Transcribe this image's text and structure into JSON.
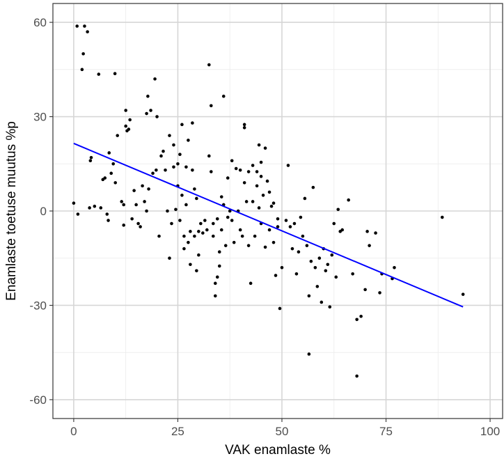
{
  "chart_data": {
    "type": "scatter",
    "title": "",
    "xlabel": "VAK enamlaste %",
    "ylabel": "Enamlaste toetuse muutus %p",
    "xlim": [
      -5,
      103
    ],
    "ylim": [
      -66,
      66
    ],
    "x_ticks": [
      0,
      25,
      50,
      75,
      100
    ],
    "x_tick_labels": [
      "0",
      "25",
      "50",
      "75",
      "100"
    ],
    "y_ticks": [
      60,
      30,
      0,
      -30,
      -60
    ],
    "y_tick_labels": [
      "60",
      "30",
      "0",
      "-30",
      "-60"
    ],
    "grid": true,
    "point_color": "#000000",
    "line_color": "#0000ff",
    "trend_line": {
      "x": [
        0,
        93.5
      ],
      "y": [
        21.5,
        -30.5
      ]
    },
    "points": [
      [
        0.8,
        58.8
      ],
      [
        2.6,
        58.8
      ],
      [
        3.3,
        57.0
      ],
      [
        2.3,
        50.0
      ],
      [
        2.0,
        45.0
      ],
      [
        6.0,
        43.5
      ],
      [
        9.9,
        43.7
      ],
      [
        0,
        2.5
      ],
      [
        1.0,
        -1.0
      ],
      [
        4.0,
        16.0
      ],
      [
        4.2,
        17.0
      ],
      [
        3.8,
        1.0
      ],
      [
        5.0,
        1.5
      ],
      [
        6.5,
        1.0
      ],
      [
        7.0,
        10.0
      ],
      [
        7.5,
        10.5
      ],
      [
        8.0,
        -1.0
      ],
      [
        8.3,
        -3.0
      ],
      [
        8.5,
        18.5
      ],
      [
        9.0,
        12.0
      ],
      [
        9.5,
        15.0
      ],
      [
        10.0,
        9.0
      ],
      [
        10.5,
        24.0
      ],
      [
        11.5,
        3.0
      ],
      [
        12.0,
        2.0
      ],
      [
        12.0,
        -4.5
      ],
      [
        12.5,
        27.0
      ],
      [
        12.5,
        32.0
      ],
      [
        12.8,
        25.5
      ],
      [
        13.2,
        26.0
      ],
      [
        13.5,
        29.0
      ],
      [
        14.0,
        -2.5
      ],
      [
        14.5,
        6.5
      ],
      [
        15.0,
        2.0
      ],
      [
        15.5,
        -4.0
      ],
      [
        16.0,
        -5.0
      ],
      [
        16.5,
        8.0
      ],
      [
        17.0,
        3.0
      ],
      [
        17.5,
        31.0
      ],
      [
        17.5,
        0
      ],
      [
        17.8,
        36.5
      ],
      [
        18.0,
        7.0
      ],
      [
        18.5,
        32.0
      ],
      [
        19.0,
        12.0
      ],
      [
        19.5,
        42.0
      ],
      [
        19.8,
        13.0
      ],
      [
        20.0,
        30.0
      ],
      [
        20.5,
        -8.0
      ],
      [
        21.0,
        17.5
      ],
      [
        21.5,
        19.0
      ],
      [
        22.0,
        13.0
      ],
      [
        22.5,
        0
      ],
      [
        23.0,
        24.0
      ],
      [
        23.5,
        -4.0
      ],
      [
        23.0,
        -15.0
      ],
      [
        24.0,
        14.0
      ],
      [
        24.0,
        21.0
      ],
      [
        24.5,
        0.5
      ],
      [
        25.0,
        8.0
      ],
      [
        25.0,
        15.0
      ],
      [
        25.5,
        18.0
      ],
      [
        25.5,
        -3.0
      ],
      [
        26.0,
        27.5
      ],
      [
        26.0,
        5.0
      ],
      [
        26.5,
        -8.0
      ],
      [
        26.5,
        -12.0
      ],
      [
        27.0,
        14.0
      ],
      [
        27.0,
        2.0
      ],
      [
        27.5,
        -10.0
      ],
      [
        27.5,
        22.5
      ],
      [
        28.0,
        -17.0
      ],
      [
        28.0,
        -6.5
      ],
      [
        28.5,
        28.0
      ],
      [
        28.5,
        13.0
      ],
      [
        29.0,
        7.0
      ],
      [
        29.0,
        -8.0
      ],
      [
        29.5,
        -19.0
      ],
      [
        29.5,
        4.0
      ],
      [
        30.0,
        -14.0
      ],
      [
        30.0,
        -6.5
      ],
      [
        30.5,
        -4.0
      ],
      [
        31.0,
        -7.0
      ],
      [
        31.5,
        -3.0
      ],
      [
        32.0,
        -6.0
      ],
      [
        32.5,
        46.5
      ],
      [
        32.5,
        17.5
      ],
      [
        33.0,
        33.5
      ],
      [
        33.0,
        12.5
      ],
      [
        33.5,
        -8.0
      ],
      [
        33.5,
        -4.0
      ],
      [
        34.0,
        -23.0
      ],
      [
        34.0,
        -27.0
      ],
      [
        34.5,
        -21.0
      ],
      [
        34.5,
        -2.5
      ],
      [
        35.0,
        -17.5
      ],
      [
        35.0,
        -13.0
      ],
      [
        35.5,
        4.5
      ],
      [
        35.5,
        -6.0
      ],
      [
        36.0,
        36.5
      ],
      [
        36.0,
        2.0
      ],
      [
        36.5,
        -11.0
      ],
      [
        37.0,
        10.5
      ],
      [
        37.0,
        -2.0
      ],
      [
        37.5,
        0
      ],
      [
        38.0,
        16.0
      ],
      [
        38.0,
        -3.0
      ],
      [
        38.5,
        -10.0
      ],
      [
        39.0,
        13.5
      ],
      [
        39.5,
        0
      ],
      [
        40.0,
        13.0
      ],
      [
        40.0,
        -6.0
      ],
      [
        40.5,
        -8.0
      ],
      [
        41.0,
        27.5
      ],
      [
        41.0,
        26.5
      ],
      [
        41.0,
        9.0
      ],
      [
        41.5,
        3.0
      ],
      [
        42.0,
        12.5
      ],
      [
        42.0,
        -11.0
      ],
      [
        42.5,
        -23.0
      ],
      [
        43.0,
        14.5
      ],
      [
        43.0,
        3.0
      ],
      [
        43.5,
        -8.0
      ],
      [
        44.0,
        12.5
      ],
      [
        44.0,
        8.0
      ],
      [
        44.5,
        21.0
      ],
      [
        44.5,
        1.0
      ],
      [
        45.0,
        15.5
      ],
      [
        45.0,
        11.0
      ],
      [
        45.0,
        -4.0
      ],
      [
        45.5,
        5.0
      ],
      [
        46.0,
        20.0
      ],
      [
        46.0,
        -11.5
      ],
      [
        46.5,
        9.5
      ],
      [
        47.0,
        6.0
      ],
      [
        47.0,
        -6.0
      ],
      [
        47.5,
        1.5
      ],
      [
        48.0,
        2.5
      ],
      [
        48.0,
        -10.0
      ],
      [
        48.5,
        -20.5
      ],
      [
        49.0,
        -2.5
      ],
      [
        49.0,
        -5.0
      ],
      [
        49.5,
        -31.0
      ],
      [
        50.0,
        -18.0
      ],
      [
        51.0,
        -3.0
      ],
      [
        51.5,
        14.5
      ],
      [
        52.0,
        -5.0
      ],
      [
        52.5,
        -12.0
      ],
      [
        53.0,
        -4.0
      ],
      [
        53.5,
        -20.0
      ],
      [
        54.0,
        -13.0
      ],
      [
        54.5,
        -2.0
      ],
      [
        55.0,
        -8.0
      ],
      [
        55.5,
        4.0
      ],
      [
        56.0,
        -11.0
      ],
      [
        56.5,
        -27.0
      ],
      [
        56.5,
        -45.5
      ],
      [
        57.0,
        -16.0
      ],
      [
        57.5,
        7.5
      ],
      [
        58.0,
        -18.0
      ],
      [
        58.5,
        -24.0
      ],
      [
        59.0,
        -15.0
      ],
      [
        59.5,
        -29.0
      ],
      [
        60.0,
        -12.0
      ],
      [
        60.5,
        -19.0
      ],
      [
        61.0,
        -17.0
      ],
      [
        61.5,
        -30.5
      ],
      [
        62.0,
        -14.0
      ],
      [
        62.5,
        -4.0
      ],
      [
        63.0,
        -21.0
      ],
      [
        63.5,
        0.5
      ],
      [
        64.0,
        -6.5
      ],
      [
        64.5,
        -6.0
      ],
      [
        66.0,
        3.5
      ],
      [
        67.0,
        -20.0
      ],
      [
        68.0,
        -34.5
      ],
      [
        68.0,
        -52.5
      ],
      [
        69.0,
        -33.5
      ],
      [
        70.0,
        -25.0
      ],
      [
        70.5,
        -6.5
      ],
      [
        71.0,
        -11.0
      ],
      [
        72.5,
        -7.0
      ],
      [
        73.5,
        -26.0
      ],
      [
        74.0,
        -20.0
      ],
      [
        76.5,
        -21.5
      ],
      [
        77.0,
        -18.0
      ],
      [
        88.5,
        -2.0
      ],
      [
        93.5,
        -26.5
      ]
    ]
  }
}
